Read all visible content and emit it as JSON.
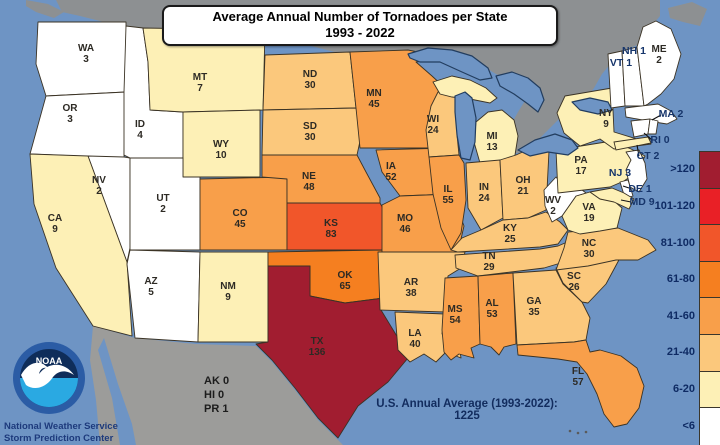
{
  "title": {
    "line1": "Average Annual Number of Tornadoes per State",
    "line2": "1993 - 2022"
  },
  "map": {
    "states": [
      {
        "abbr": "WA",
        "value": 3
      },
      {
        "abbr": "OR",
        "value": 3
      },
      {
        "abbr": "ID",
        "value": 4
      },
      {
        "abbr": "MT",
        "value": 7
      },
      {
        "abbr": "WY",
        "value": 10
      },
      {
        "abbr": "NV",
        "value": 2
      },
      {
        "abbr": "UT",
        "value": 2
      },
      {
        "abbr": "CA",
        "value": 9
      },
      {
        "abbr": "AZ",
        "value": 5
      },
      {
        "abbr": "NM",
        "value": 9
      },
      {
        "abbr": "CO",
        "value": 45
      },
      {
        "abbr": "ND",
        "value": 30
      },
      {
        "abbr": "SD",
        "value": 30
      },
      {
        "abbr": "NE",
        "value": 48
      },
      {
        "abbr": "KS",
        "value": 83
      },
      {
        "abbr": "OK",
        "value": 65
      },
      {
        "abbr": "TX",
        "value": 136
      },
      {
        "abbr": "MN",
        "value": 45
      },
      {
        "abbr": "IA",
        "value": 52
      },
      {
        "abbr": "MO",
        "value": 46
      },
      {
        "abbr": "AR",
        "value": 38
      },
      {
        "abbr": "LA",
        "value": 40
      },
      {
        "abbr": "WI",
        "value": 24
      },
      {
        "abbr": "IL",
        "value": 55
      },
      {
        "abbr": "MI",
        "value": 13
      },
      {
        "abbr": "IN",
        "value": 24
      },
      {
        "abbr": "OH",
        "value": 21
      },
      {
        "abbr": "KY",
        "value": 25
      },
      {
        "abbr": "TN",
        "value": 29
      },
      {
        "abbr": "MS",
        "value": 54
      },
      {
        "abbr": "AL",
        "value": 53
      },
      {
        "abbr": "GA",
        "value": 35
      },
      {
        "abbr": "FL",
        "value": 57
      },
      {
        "abbr": "SC",
        "value": 26
      },
      {
        "abbr": "NC",
        "value": 30
      },
      {
        "abbr": "VA",
        "value": 19
      },
      {
        "abbr": "WV",
        "value": 2
      },
      {
        "abbr": "PA",
        "value": 17
      },
      {
        "abbr": "NY",
        "value": 9
      },
      {
        "abbr": "NJ",
        "value": 3
      },
      {
        "abbr": "DE",
        "value": 1
      },
      {
        "abbr": "MD",
        "value": 9
      },
      {
        "abbr": "VT",
        "value": 1
      },
      {
        "abbr": "NH",
        "value": 1
      },
      {
        "abbr": "ME",
        "value": 2
      },
      {
        "abbr": "MA",
        "value": 2
      },
      {
        "abbr": "CT",
        "value": 2
      },
      {
        "abbr": "RI",
        "value": 0
      }
    ],
    "other_areas": [
      {
        "abbr": "AK",
        "value": 0
      },
      {
        "abbr": "HI",
        "value": 0
      },
      {
        "abbr": "PR",
        "value": 1
      }
    ],
    "annual_average_note": "U.S. Annual Average (1993-2022): 1225"
  },
  "legend": {
    "labels": [
      ">120",
      "101-120",
      "81-100",
      "61-80",
      "41-60",
      "21-40",
      "6-20",
      "<6"
    ],
    "colors": [
      "#a11d30",
      "#e92026",
      "#f1562a",
      "#f57f20",
      "#f89f4a",
      "#fbc87c",
      "#fdf0b6",
      "#ffffff"
    ]
  },
  "footer": {
    "agency_line1": "National Weather Service",
    "agency_line2": "Storm Prediction Center",
    "logo_text": "NOAA"
  },
  "colors": {
    "ocean": "#6e94c4",
    "canada": "#8d9092",
    "mexico": "#9c9c9a",
    "state_border": "#3b3325",
    "lake_border": "#223d5f"
  }
}
